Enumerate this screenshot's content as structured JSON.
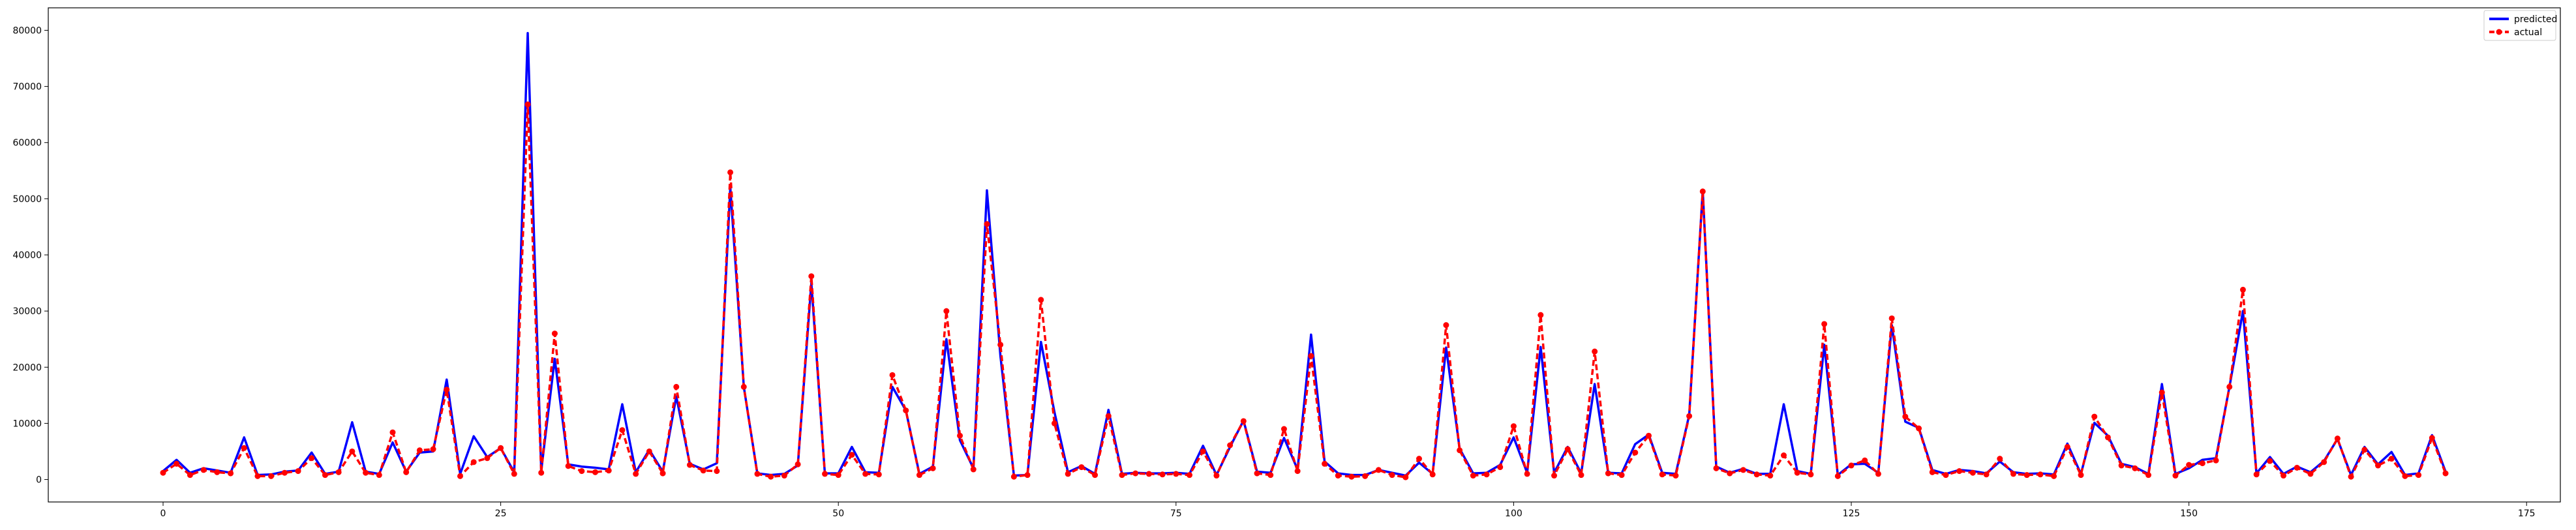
{
  "chart_data": {
    "type": "line",
    "title": "",
    "xlabel": "",
    "ylabel": "",
    "xlim": [
      -8.5,
      177.5
    ],
    "ylim": [
      -4000,
      84000
    ],
    "x_ticks": [
      0,
      25,
      50,
      75,
      100,
      125,
      150,
      175
    ],
    "y_ticks": [
      0,
      10000,
      20000,
      30000,
      40000,
      50000,
      60000,
      70000,
      80000
    ],
    "grid": false,
    "legend_position": "top-right",
    "series": [
      {
        "name": "predicted",
        "color": "#0000ff",
        "style": "solid",
        "marker": "none",
        "values": [
          1500,
          3500,
          1200,
          2000,
          1600,
          1200,
          7500,
          800,
          900,
          1400,
          1600,
          4800,
          1000,
          1400,
          10200,
          1400,
          1000,
          6600,
          1400,
          4800,
          5000,
          17800,
          1000,
          7700,
          4000,
          5600,
          1300,
          79500,
          1600,
          21500,
          2700,
          2300,
          2100,
          1800,
          13400,
          1300,
          5300,
          1400,
          14800,
          2800,
          1800,
          2900,
          52000,
          16500,
          1100,
          800,
          1000,
          2500,
          35000,
          1100,
          1100,
          5800,
          1300,
          1200,
          16500,
          12300,
          1000,
          2300,
          25000,
          7000,
          2000,
          51500,
          22000,
          700,
          800,
          24500,
          12000,
          1300,
          2400,
          1000,
          12400,
          1000,
          1200,
          1100,
          1100,
          1200,
          1000,
          6000,
          800,
          5800,
          10500,
          1400,
          1200,
          7400,
          1800,
          25800,
          3200,
          1100,
          800,
          800,
          1700,
          1200,
          700,
          3000,
          1000,
          23500,
          5500,
          1100,
          1200,
          2600,
          7500,
          1200,
          23600,
          1200,
          5800,
          1100,
          17000,
          1200,
          1100,
          6300,
          8000,
          1200,
          1000,
          11500,
          51500,
          2300,
          1200,
          1900,
          1000,
          1000,
          13400,
          1500,
          1000,
          24000,
          800,
          2700,
          2800,
          1200,
          27500,
          10300,
          9200,
          1700,
          1000,
          1700,
          1500,
          1100,
          3200,
          1300,
          1000,
          1100,
          900,
          6400,
          1000,
          10100,
          7800,
          2800,
          2200,
          1000,
          17000,
          1000,
          2000,
          3500,
          3800,
          16500,
          30000,
          1100,
          4000,
          1000,
          2300,
          1300,
          3300,
          7200,
          800,
          5800,
          2700,
          4900,
          800,
          1100,
          7900,
          1400
        ]
      },
      {
        "name": "actual",
        "color": "#ff0000",
        "style": "dashed",
        "marker": "circle",
        "values": [
          1200,
          2800,
          800,
          1700,
          1300,
          1100,
          5600,
          600,
          600,
          1200,
          1500,
          3800,
          800,
          1300,
          5000,
          1200,
          800,
          8400,
          1300,
          5200,
          5400,
          16000,
          600,
          3100,
          3800,
          5600,
          1000,
          66800,
          1200,
          26000,
          2400,
          1500,
          1300,
          1600,
          8800,
          1000,
          5000,
          1100,
          16500,
          2600,
          1600,
          1500,
          54700,
          16500,
          1000,
          500,
          700,
          2700,
          36200,
          1000,
          800,
          4400,
          1000,
          900,
          18600,
          12300,
          800,
          2000,
          30000,
          7800,
          1800,
          45500,
          24000,
          500,
          800,
          32000,
          10000,
          1000,
          2200,
          800,
          11300,
          800,
          1100,
          1000,
          900,
          1000,
          800,
          5000,
          700,
          6100,
          10400,
          1100,
          800,
          9000,
          1500,
          22000,
          2800,
          700,
          500,
          600,
          1700,
          800,
          400,
          3700,
          900,
          27500,
          5200,
          700,
          900,
          2200,
          9500,
          1000,
          29300,
          700,
          5400,
          800,
          22800,
          1100,
          800,
          4800,
          7800,
          900,
          700,
          11300,
          51300,
          2000,
          1100,
          1700,
          900,
          700,
          4300,
          1200,
          900,
          27700,
          600,
          2500,
          3400,
          1000,
          28700,
          11200,
          9100,
          1300,
          800,
          1500,
          1200,
          900,
          3700,
          1000,
          800,
          900,
          600,
          5800,
          800,
          11200,
          7500,
          2500,
          2000,
          800,
          15500,
          700,
          2600,
          2900,
          3400,
          16500,
          33800,
          900,
          3300,
          700,
          2100,
          1000,
          3100,
          7300,
          500,
          5300,
          2500,
          3700,
          600,
          800,
          7400,
          1100
        ]
      }
    ]
  }
}
